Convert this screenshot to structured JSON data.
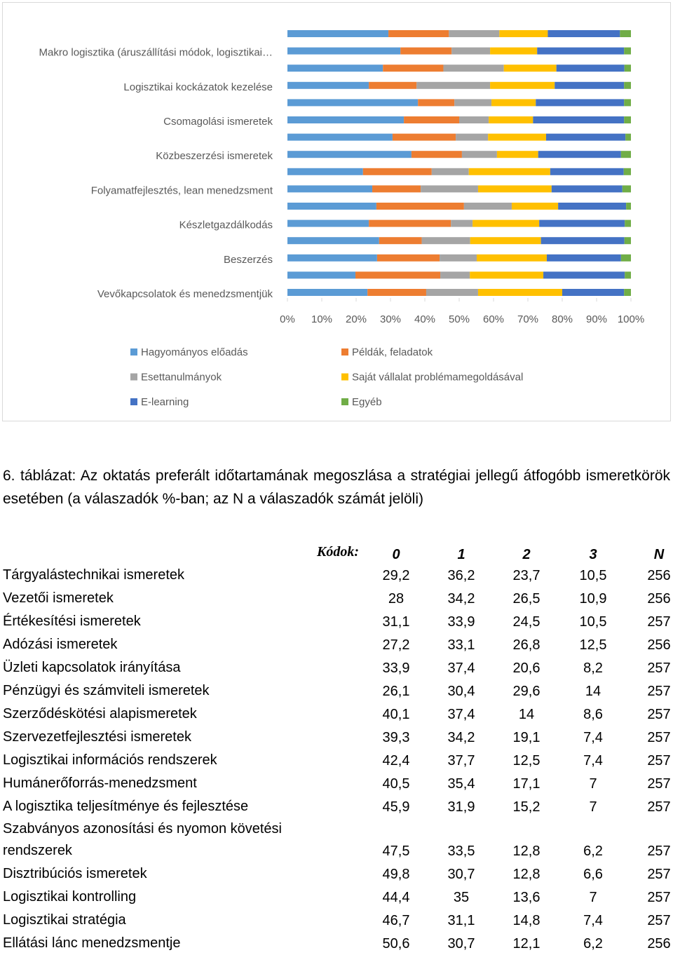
{
  "chart_data": {
    "type": "bar",
    "orientation": "horizontal",
    "stacked": true,
    "categories": [
      null,
      "Makro logisztika (áruszállítási módok, logisztikai…",
      null,
      "Logisztikai kockázatok kezelése",
      null,
      "Csomagolási ismeretek",
      null,
      "Közbeszerzési ismeretek",
      null,
      "Folyamatfejlesztés, lean menedzsment",
      null,
      "Készletgazdálkodás",
      null,
      "Beszerzés",
      null,
      "Vevőkapcsolatok és menedzsmentjük"
    ],
    "series": [
      {
        "name": "Hagyományos előadás",
        "color": "#5b9bd5",
        "values": [
          29.4,
          32.9,
          27.8,
          23.7,
          38,
          33.9,
          30.6,
          36.1,
          22,
          24.7,
          25.9,
          23.7,
          26.7,
          26.1,
          19.8,
          23.3
        ]
      },
      {
        "name": "Példák, feladatok",
        "color": "#ed7d31",
        "values": [
          17.6,
          14.9,
          17.6,
          13.9,
          10.6,
          16.1,
          18.4,
          14.7,
          20,
          14.1,
          25.5,
          23.9,
          12.4,
          18.2,
          24.7,
          17.1
        ]
      },
      {
        "name": "Esettanulmányok",
        "color": "#a5a5a5",
        "values": [
          14.7,
          11.2,
          17.6,
          21.4,
          10.8,
          8.6,
          9.4,
          10.2,
          10.8,
          16.7,
          13.9,
          6.3,
          14.1,
          10.8,
          8.6,
          15.1
        ]
      },
      {
        "name": "Saját vállalat problémamegoldásával",
        "color": "#ffc000",
        "values": [
          14.1,
          13.7,
          15.3,
          18.8,
          12.9,
          12.9,
          16.9,
          12,
          23.7,
          21.4,
          13.5,
          19.4,
          20.6,
          20.4,
          21.4,
          24.5
        ]
      },
      {
        "name": "E-learning",
        "color": "#4472c4",
        "values": [
          21,
          25.3,
          19.8,
          20.2,
          25.7,
          26.5,
          23.1,
          24.1,
          21.4,
          20.6,
          19.8,
          24.9,
          24.3,
          21.6,
          23.7,
          18
        ]
      },
      {
        "name": "Egyéb",
        "color": "#70ad47",
        "values": [
          3.2,
          2,
          1.9,
          2,
          2,
          2,
          1.6,
          2.9,
          2.1,
          2.5,
          1.4,
          1.8,
          1.9,
          2.9,
          1.8,
          2
        ]
      }
    ],
    "xlim": [
      0,
      100
    ],
    "xticks": [
      {
        "value": 0,
        "label": "0%"
      },
      {
        "value": 10,
        "label": "10%"
      },
      {
        "value": 20,
        "label": "20%"
      },
      {
        "value": 30,
        "label": "30%"
      },
      {
        "value": 40,
        "label": "40%"
      },
      {
        "value": 50,
        "label": "50%"
      },
      {
        "value": 60,
        "label": "60%"
      },
      {
        "value": 70,
        "label": "70%"
      },
      {
        "value": 80,
        "label": "80%"
      },
      {
        "value": 90,
        "label": "90%"
      },
      {
        "value": 100,
        "label": "100%"
      }
    ],
    "legend": "bottom"
  },
  "table": {
    "caption": "6. táblázat: Az oktatás preferált időtartamának megoszlása a stratégiai jellegű átfogóbb ismeretkörök esetében (a válaszadók %-ban; az N a válaszadók számát jelöli)",
    "header_label": "Kódok:",
    "columns": [
      "0",
      "1",
      "2",
      "3",
      "N"
    ],
    "rows": [
      [
        "Tárgyalástechnikai ismeretek",
        "29,2",
        "36,2",
        "23,7",
        "10,5",
        "256"
      ],
      [
        "Vezetői ismeretek",
        "28",
        "34,2",
        "26,5",
        "10,9",
        "256"
      ],
      [
        "Értékesítési ismeretek",
        "31,1",
        "33,9",
        "24,5",
        "10,5",
        "257"
      ],
      [
        "Adózási ismeretek",
        "27,2",
        "33,1",
        "26,8",
        "12,5",
        "256"
      ],
      [
        "Üzleti kapcsolatok irányítása",
        "33,9",
        "37,4",
        "20,6",
        "8,2",
        "257"
      ],
      [
        "Pénzügyi és számviteli ismeretek",
        "26,1",
        "30,4",
        "29,6",
        "14",
        "257"
      ],
      [
        "Szerződéskötési alapismeretek",
        "40,1",
        "37,4",
        "14",
        "8,6",
        "257"
      ],
      [
        "Szervezetfejlesztési ismeretek",
        "39,3",
        "34,2",
        "19,1",
        "7,4",
        "257"
      ],
      [
        "Logisztikai információs rendszerek",
        "42,4",
        "37,7",
        "12,5",
        "7,4",
        "257"
      ],
      [
        "Humánerőforrás-menedzsment",
        "40,5",
        "35,4",
        "17,1",
        "7",
        "257"
      ],
      [
        "A logisztika teljesítménye és fejlesztése",
        "45,9",
        "31,9",
        "15,2",
        "7",
        "257"
      ],
      [
        "Szabványos azonosítási és nyomon követési rendszerek",
        "47,5",
        "33,5",
        "12,8",
        "6,2",
        "257"
      ],
      [
        "Disztribúciós ismeretek",
        "49,8",
        "30,7",
        "12,8",
        "6,6",
        "257"
      ],
      [
        "Logisztikai kontrolling",
        "44,4",
        "35",
        "13,6",
        "7",
        "257"
      ],
      [
        "Logisztikai stratégia",
        "46,7",
        "31,1",
        "14,8",
        "7,4",
        "257"
      ],
      [
        "Ellátási lánc menedzsmentje",
        "50,6",
        "30,7",
        "12,1",
        "6,2",
        "256"
      ]
    ]
  }
}
